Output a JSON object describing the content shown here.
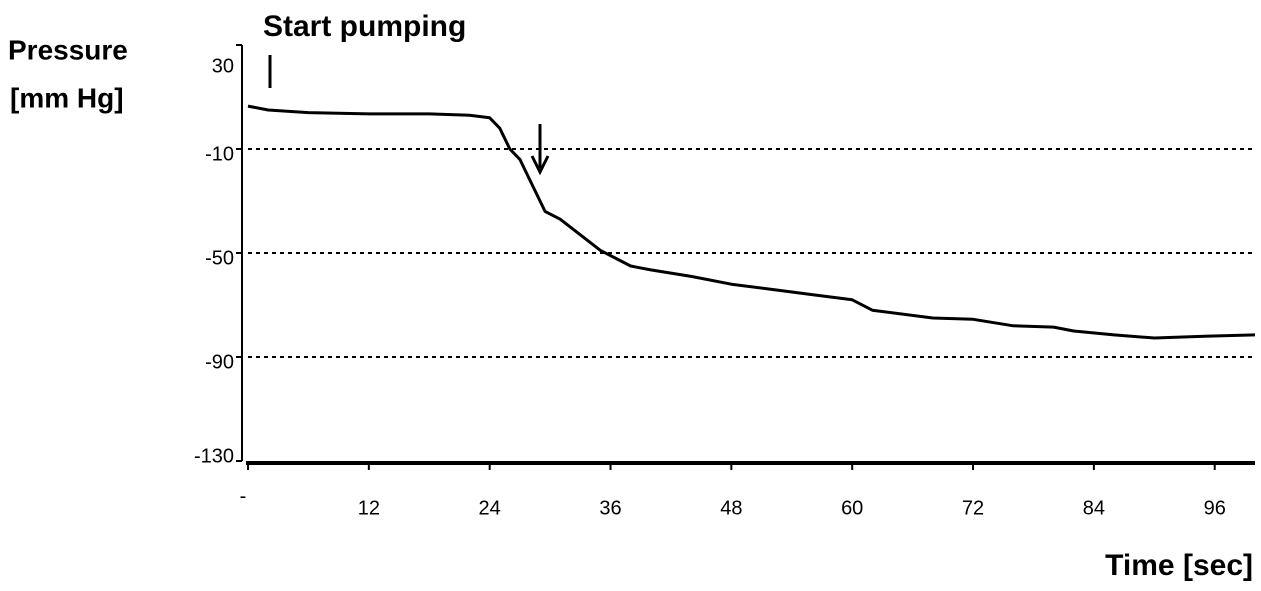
{
  "chart_data": {
    "type": "line",
    "annotation": "Start pumping",
    "y_label": [
      "Pressure",
      "[mm Hg]"
    ],
    "x_label": "Time [sec]",
    "x": [
      0,
      2,
      6,
      12,
      18,
      22,
      24,
      25,
      26,
      27,
      28.5,
      29.5,
      31,
      33,
      35,
      38,
      40,
      44,
      48,
      52,
      56,
      60,
      62,
      68,
      72,
      76,
      80,
      82,
      86,
      90,
      95,
      100
    ],
    "series": [
      {
        "name": "Pressure",
        "color": "#000000",
        "values": [
          6.5,
          5,
          4,
          3.5,
          3.5,
          3,
          2,
          -2,
          -10,
          -14,
          -26,
          -34,
          -37,
          -43,
          -49,
          -55,
          -56.5,
          -59,
          -62,
          -64,
          -66,
          -68,
          -72,
          -75,
          -75.5,
          -78,
          -78.5,
          -80,
          -81.5,
          -82.7,
          -82,
          -81.5
        ]
      }
    ],
    "xlim": [
      0,
      100
    ],
    "xticks": [
      {
        "value": 0,
        "label": "-"
      },
      12,
      24,
      36,
      48,
      60,
      72,
      84,
      96
    ],
    "ylim": [
      -130,
      30
    ],
    "yticks": [
      30,
      -10,
      -50,
      -90,
      -130
    ],
    "grid": true
  }
}
